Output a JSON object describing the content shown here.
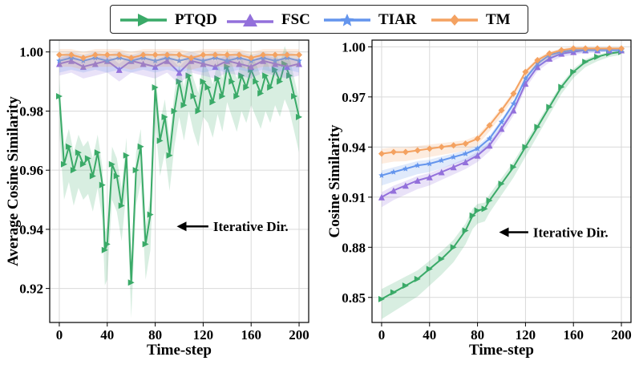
{
  "legend": {
    "items": [
      {
        "label": "PTQD",
        "color": "#3aaa68",
        "marker": "triangle-right"
      },
      {
        "label": "FSC",
        "color": "#9370db",
        "marker": "triangle-up"
      },
      {
        "label": "TIAR",
        "color": "#6495ed",
        "marker": "star"
      },
      {
        "label": "TM",
        "color": "#f4a261",
        "marker": "diamond"
      }
    ]
  },
  "chart_data": [
    {
      "type": "line",
      "title": "",
      "xlabel": "Time-step",
      "ylabel": "Average Cosine Similarity",
      "xlim": [
        -8,
        208
      ],
      "ylim": [
        0.9085,
        1.004
      ],
      "x_ticks": [
        0,
        40,
        80,
        120,
        160,
        200
      ],
      "y_ticks": [
        0.92,
        0.94,
        0.96,
        0.98,
        1.0
      ],
      "y_tick_labels": [
        "0.92",
        "0.94",
        "0.96",
        "0.98",
        "1.00"
      ],
      "grid": true,
      "annotation": {
        "text": "Iterative Dir.",
        "arrow_from": [
          127,
          0.941
        ],
        "arrow_to": [
          98,
          0.941
        ]
      },
      "series": [
        {
          "name": "PTQD",
          "color": "#3aaa68",
          "x": [
            0,
            4,
            8,
            12,
            16,
            20,
            24,
            28,
            32,
            36,
            38,
            40,
            44,
            48,
            52,
            56,
            60,
            64,
            68,
            72,
            76,
            80,
            84,
            88,
            92,
            96,
            100,
            104,
            108,
            112,
            116,
            120,
            124,
            128,
            132,
            136,
            140,
            144,
            148,
            152,
            156,
            160,
            164,
            168,
            172,
            176,
            180,
            184,
            188,
            192,
            196,
            200
          ],
          "y": [
            0.985,
            0.962,
            0.968,
            0.96,
            0.966,
            0.962,
            0.964,
            0.958,
            0.966,
            0.955,
            0.933,
            0.935,
            0.962,
            0.958,
            0.948,
            0.965,
            0.922,
            0.96,
            0.968,
            0.935,
            0.945,
            0.988,
            0.97,
            0.978,
            0.965,
            0.98,
            0.99,
            0.982,
            0.992,
            0.985,
            0.98,
            0.99,
            0.988,
            0.983,
            0.991,
            0.985,
            0.995,
            0.99,
            0.985,
            0.992,
            0.988,
            0.994,
            0.99,
            0.986,
            0.992,
            0.988,
            0.994,
            0.99,
            0.996,
            0.992,
            0.985,
            0.978
          ]
        },
        {
          "name": "FSC",
          "color": "#9370db",
          "x": [
            0,
            10,
            20,
            30,
            40,
            50,
            60,
            70,
            80,
            90,
            100,
            110,
            120,
            130,
            140,
            150,
            160,
            170,
            180,
            190,
            200
          ],
          "y": [
            0.996,
            0.997,
            0.995,
            0.996,
            0.997,
            0.994,
            0.997,
            0.996,
            0.995,
            0.997,
            0.993,
            0.997,
            0.996,
            0.995,
            0.997,
            0.996,
            0.995,
            0.997,
            0.996,
            0.995,
            0.996
          ]
        },
        {
          "name": "TIAR",
          "color": "#6495ed",
          "x": [
            0,
            10,
            20,
            30,
            40,
            50,
            60,
            70,
            80,
            90,
            100,
            110,
            120,
            130,
            140,
            150,
            160,
            170,
            180,
            190,
            200
          ],
          "y": [
            0.997,
            0.998,
            0.997,
            0.998,
            0.997,
            0.998,
            0.997,
            0.998,
            0.997,
            0.998,
            0.997,
            0.998,
            0.997,
            0.998,
            0.997,
            0.998,
            0.997,
            0.998,
            0.997,
            0.998,
            0.997
          ]
        },
        {
          "name": "TM",
          "color": "#f4a261",
          "x": [
            0,
            10,
            20,
            30,
            40,
            50,
            60,
            70,
            80,
            90,
            100,
            110,
            120,
            130,
            140,
            150,
            160,
            170,
            180,
            190,
            200
          ],
          "y": [
            0.999,
            0.999,
            0.998,
            0.999,
            0.999,
            0.999,
            0.998,
            0.999,
            0.999,
            0.999,
            0.999,
            0.998,
            0.999,
            0.999,
            0.999,
            0.999,
            0.998,
            0.999,
            0.999,
            0.999,
            0.999
          ]
        }
      ]
    },
    {
      "type": "line",
      "title": "",
      "xlabel": "Time-step",
      "ylabel": "Cosine Similarity",
      "xlim": [
        -8,
        208
      ],
      "ylim": [
        0.835,
        1.004
      ],
      "x_ticks": [
        0,
        40,
        80,
        120,
        160,
        200
      ],
      "y_ticks": [
        0.85,
        0.88,
        0.91,
        0.94,
        0.97,
        1.0
      ],
      "y_tick_labels": [
        "0.85",
        "0.88",
        "0.91",
        "0.94",
        "0.97",
        "1.00"
      ],
      "grid": true,
      "annotation": {
        "text": "Iterative Dir.",
        "arrow_from": [
          125,
          0.889
        ],
        "arrow_to": [
          98,
          0.889
        ]
      },
      "series": [
        {
          "name": "PTQD",
          "color": "#3aaa68",
          "x": [
            0,
            10,
            20,
            30,
            40,
            50,
            60,
            70,
            76,
            80,
            86,
            90,
            100,
            110,
            120,
            130,
            140,
            150,
            160,
            170,
            180,
            190,
            200
          ],
          "y": [
            0.849,
            0.853,
            0.857,
            0.861,
            0.867,
            0.873,
            0.88,
            0.89,
            0.899,
            0.902,
            0.903,
            0.908,
            0.918,
            0.928,
            0.94,
            0.952,
            0.964,
            0.976,
            0.985,
            0.991,
            0.994,
            0.996,
            0.997
          ]
        },
        {
          "name": "FSC",
          "color": "#9370db",
          "x": [
            0,
            10,
            20,
            30,
            40,
            50,
            60,
            70,
            80,
            90,
            100,
            110,
            120,
            130,
            140,
            150,
            160,
            170,
            180,
            190,
            200
          ],
          "y": [
            0.91,
            0.914,
            0.917,
            0.92,
            0.922,
            0.925,
            0.928,
            0.931,
            0.935,
            0.941,
            0.951,
            0.962,
            0.978,
            0.988,
            0.993,
            0.996,
            0.997,
            0.998,
            0.998,
            0.998,
            0.998
          ]
        },
        {
          "name": "TIAR",
          "color": "#6495ed",
          "x": [
            0,
            10,
            20,
            30,
            40,
            50,
            60,
            70,
            80,
            90,
            100,
            110,
            120,
            130,
            140,
            150,
            160,
            170,
            180,
            190,
            200
          ],
          "y": [
            0.923,
            0.925,
            0.927,
            0.929,
            0.93,
            0.932,
            0.934,
            0.936,
            0.939,
            0.945,
            0.955,
            0.966,
            0.981,
            0.99,
            0.995,
            0.997,
            0.998,
            0.998,
            0.998,
            0.998,
            0.998
          ]
        },
        {
          "name": "TM",
          "color": "#f4a261",
          "x": [
            0,
            10,
            20,
            30,
            40,
            50,
            60,
            70,
            80,
            90,
            100,
            110,
            120,
            130,
            140,
            150,
            160,
            170,
            180,
            190,
            200
          ],
          "y": [
            0.936,
            0.937,
            0.937,
            0.938,
            0.939,
            0.94,
            0.941,
            0.942,
            0.945,
            0.953,
            0.962,
            0.972,
            0.985,
            0.992,
            0.996,
            0.998,
            0.999,
            0.999,
            0.999,
            0.999,
            0.999
          ]
        }
      ]
    }
  ]
}
